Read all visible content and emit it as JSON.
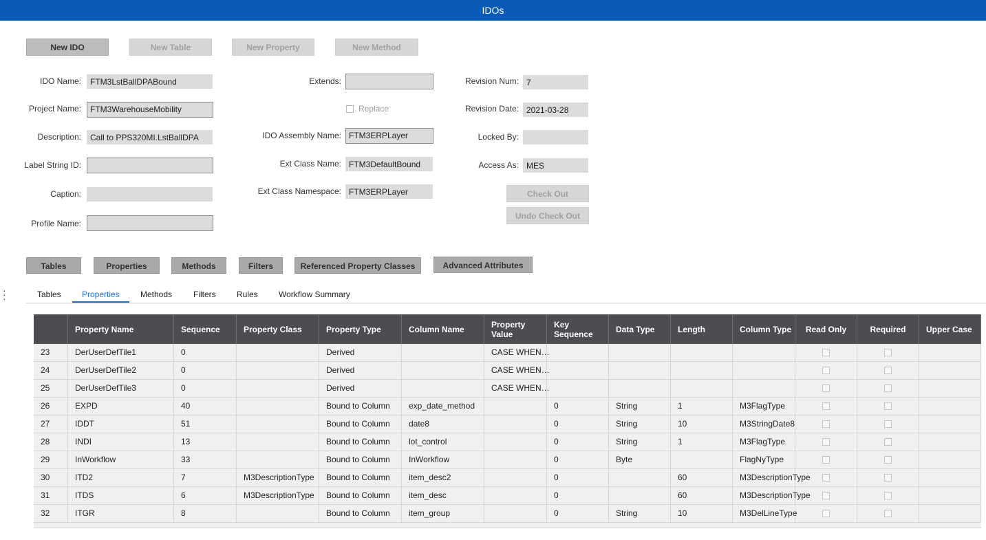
{
  "window": {
    "title": "IDOs"
  },
  "toolbar": {
    "new_ido": "New IDO",
    "new_table": "New Table",
    "new_property": "New Property",
    "new_method": "New Method"
  },
  "form": {
    "ido_name": {
      "label": "IDO Name:",
      "value": "FTM3LstBallDPABound"
    },
    "project_name": {
      "label": "Project Name:",
      "value": "FTM3WarehouseMobility"
    },
    "description": {
      "label": "Description:",
      "value": "Call to PPS320MI.LstBallDPA"
    },
    "label_string_id": {
      "label": "Label String ID:",
      "value": ""
    },
    "caption": {
      "label": "Caption:",
      "value": ""
    },
    "profile_name": {
      "label": "Profile Name:",
      "value": ""
    },
    "extends": {
      "label": "Extends:",
      "value": ""
    },
    "replace": {
      "label": "Replace",
      "checked": false
    },
    "ido_assembly_name": {
      "label": "IDO Assembly Name:",
      "value": "FTM3ERPLayer"
    },
    "ext_class_name": {
      "label": "Ext Class Name:",
      "value": "FTM3DefaultBound"
    },
    "ext_class_namespace": {
      "label": "Ext Class Namespace:",
      "value": "FTM3ERPLayer"
    },
    "revision_num": {
      "label": "Revision Num:",
      "value": "7"
    },
    "revision_date": {
      "label": "Revision Date:",
      "value": "2021-03-28"
    },
    "locked_by": {
      "label": "Locked By:",
      "value": ""
    },
    "access_as": {
      "label": "Access As:",
      "value": "MES"
    },
    "check_out": "Check Out",
    "undo_check_out": "Undo Check Out"
  },
  "section_buttons": [
    "Tables",
    "Properties",
    "Methods",
    "Filters",
    "Referenced Property Classes",
    "Advanced Attributes"
  ],
  "tabs": [
    "Tables",
    "Properties",
    "Methods",
    "Filters",
    "Rules",
    "Workflow Summary"
  ],
  "active_tab": "Properties",
  "grid": {
    "columns": [
      "",
      "Property Name",
      "Sequence",
      "Property Class",
      "Property Type",
      "Column Name",
      "Property Value",
      "Key Sequence",
      "Data Type",
      "Length",
      "Column Type",
      "Read Only",
      "Required",
      "Upper Case"
    ],
    "rows": [
      [
        "23",
        "DerUserDefTile1",
        "0",
        "",
        "Derived",
        "",
        "CASE WHEN…",
        "",
        "",
        "",
        ""
      ],
      [
        "24",
        "DerUserDefTile2",
        "0",
        "",
        "Derived",
        "",
        "CASE WHEN…",
        "",
        "",
        "",
        ""
      ],
      [
        "25",
        "DerUserDefTile3",
        "0",
        "",
        "Derived",
        "",
        "CASE WHEN…",
        "",
        "",
        "",
        ""
      ],
      [
        "26",
        "EXPD",
        "40",
        "",
        "Bound to Column",
        "exp_date_method",
        "",
        "0",
        "String",
        "1",
        "M3FlagType"
      ],
      [
        "27",
        "IDDT",
        "51",
        "",
        "Bound to Column",
        "date8",
        "",
        "0",
        "String",
        "10",
        "M3StringDate8"
      ],
      [
        "28",
        "INDI",
        "13",
        "",
        "Bound to Column",
        "lot_control",
        "",
        "0",
        "String",
        "1",
        "M3FlagType"
      ],
      [
        "29",
        "InWorkflow",
        "33",
        "",
        "Bound to Column",
        "InWorkflow",
        "",
        "0",
        "Byte",
        "",
        "FlagNyType"
      ],
      [
        "30",
        "ITD2",
        "7",
        "M3DescriptionType",
        "Bound to Column",
        "item_desc2",
        "",
        "0",
        "",
        "60",
        "M3DescriptionType"
      ],
      [
        "31",
        "ITDS",
        "6",
        "M3DescriptionType",
        "Bound to Column",
        "item_desc",
        "",
        "0",
        "",
        "60",
        "M3DescriptionType"
      ],
      [
        "32",
        "ITGR",
        "8",
        "",
        "Bound to Column",
        "item_group",
        "",
        "0",
        "String",
        "10",
        "M3DelLineType"
      ]
    ]
  }
}
